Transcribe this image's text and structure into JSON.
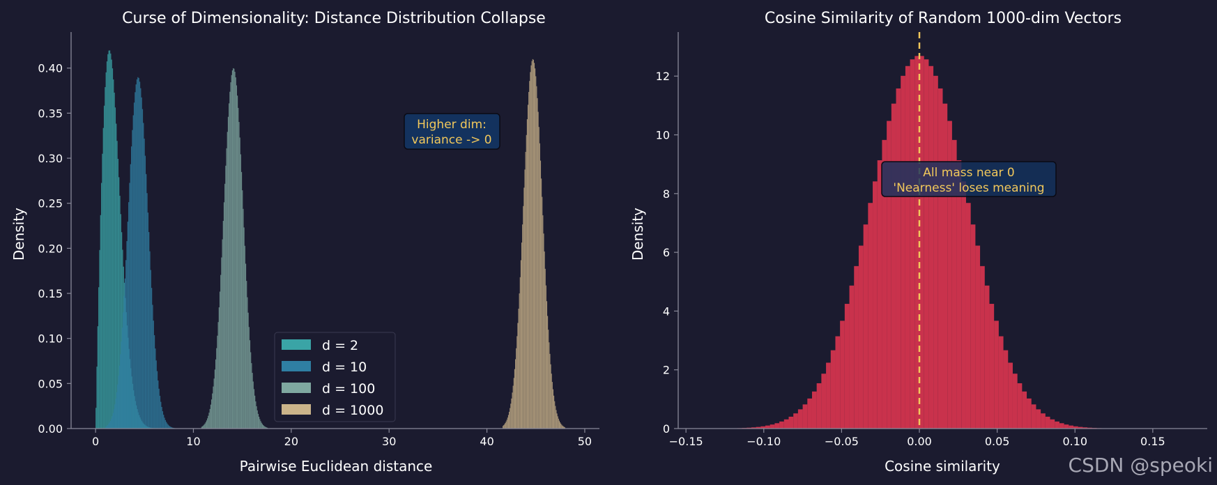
{
  "watermark": "CSDN @speoki",
  "colors": {
    "background": "#1b1b2f",
    "text": "#ffffff",
    "axis": "#8a8a9a",
    "annotation_text": "#f2c85b",
    "annotation_box": "#13325e",
    "annotation_edge": "#0a0a14",
    "d2": "#3aa4a6",
    "d10": "#2f7fa3",
    "d100": "#7fa8a0",
    "d1000": "#cbb48a",
    "cosine": "#d8344f",
    "vline": "#f2c85b"
  },
  "chart_data": [
    {
      "type": "histogram",
      "title": "Curse of Dimensionality: Distance Distribution Collapse",
      "xlabel": "Pairwise Euclidean distance",
      "ylabel": "Density",
      "xlim": [
        -2.5,
        51.5
      ],
      "ylim": [
        0,
        0.44
      ],
      "xticks": [
        "0",
        "10",
        "20",
        "30",
        "40",
        "50"
      ],
      "xtick_values": [
        0,
        10,
        20,
        30,
        40,
        50
      ],
      "yticks": [
        "0.00",
        "0.05",
        "0.10",
        "0.15",
        "0.20",
        "0.25",
        "0.30",
        "0.35",
        "0.40"
      ],
      "ytick_values": [
        0,
        0.05,
        0.1,
        0.15,
        0.2,
        0.25,
        0.3,
        0.35,
        0.4
      ],
      "grid": false,
      "legend_position": "lower-center",
      "series": [
        {
          "name": "d = 2",
          "color_key": "d2",
          "distribution": "rayleigh",
          "sigma": 1.41,
          "peak": 0.42,
          "range": [
            0,
            7.5
          ]
        },
        {
          "name": "d = 10",
          "color_key": "d10",
          "distribution": "gaussian",
          "mean": 4.35,
          "peak": 0.39,
          "range": [
            1.0,
            8.5
          ]
        },
        {
          "name": "d = 100",
          "color_key": "d100",
          "distribution": "gaussian",
          "mean": 14.1,
          "peak": 0.4,
          "range": [
            10.8,
            17.6
          ]
        },
        {
          "name": "d = 1000",
          "color_key": "d1000",
          "distribution": "gaussian",
          "mean": 44.7,
          "peak": 0.41,
          "range": [
            41.6,
            48.0
          ]
        }
      ],
      "annotation": {
        "lines": [
          "Higher dim:",
          "variance -> 0"
        ],
        "x": 36.2,
        "y": 0.33
      }
    },
    {
      "type": "histogram",
      "title": "Cosine Similarity of Random 1000-dim Vectors",
      "xlabel": "Cosine similarity",
      "ylabel": "Density",
      "xlim": [
        -0.155,
        0.185
      ],
      "ylim": [
        0,
        13.5
      ],
      "xticks": [
        "−0.15",
        "−0.10",
        "−0.05",
        "0.00",
        "0.05",
        "0.10",
        "0.15"
      ],
      "xtick_values": [
        -0.15,
        -0.1,
        -0.05,
        0.0,
        0.05,
        0.1,
        0.15
      ],
      "yticks": [
        "0",
        "2",
        "4",
        "6",
        "8",
        "10",
        "12"
      ],
      "ytick_values": [
        0,
        2,
        4,
        6,
        8,
        10,
        12
      ],
      "grid": false,
      "series": [
        {
          "name": "",
          "color_key": "cosine",
          "distribution": "gaussian",
          "mean": 0.0,
          "peak": 12.7,
          "range": [
            -0.15,
            0.15
          ]
        }
      ],
      "vline": {
        "x": 0.0,
        "style": "dashed",
        "color_key": "vline"
      },
      "annotation": {
        "lines": [
          "All mass near 0",
          "'Nearness' loses meaning"
        ],
        "x": 0.031,
        "y": 8.5
      }
    }
  ]
}
